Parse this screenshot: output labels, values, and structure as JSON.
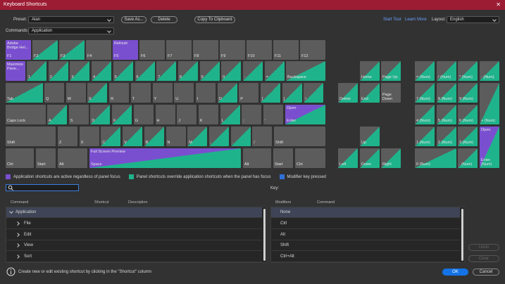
{
  "window": {
    "title": "Keyboard Shortcuts"
  },
  "toolbar": {
    "preset_label": "Preset:",
    "preset": "Alan",
    "save_as": "Save As...",
    "delete": "Delete",
    "copy": "Copy To Clipboard",
    "start_tour": "Start Tour",
    "learn_more": "Learn More",
    "layout_label": "Layout:",
    "layout": "English",
    "commands_label": "Commands:",
    "commands": "Application"
  },
  "keyboard": {
    "colors": {
      "plain": "#5c5c5c",
      "app": "#7a4fcf",
      "panel": "#1fb38b"
    },
    "keys": [
      {
        "label": "F1",
        "command": "Adobe Bridge Hel...",
        "style": "app"
      },
      {
        "label": "F2",
        "style": "half"
      },
      {
        "label": "F3",
        "style": "half"
      },
      {
        "label": "F4",
        "style": "plain"
      },
      {
        "label": "F5",
        "command": "Refresh",
        "style": "app"
      },
      {
        "label": "F6",
        "style": "plain"
      },
      {
        "label": "F7",
        "style": "plain"
      },
      {
        "label": "F8",
        "style": "plain"
      },
      {
        "label": "F9",
        "style": "plain"
      },
      {
        "label": "F10",
        "style": "plain"
      },
      {
        "label": "F11",
        "style": "plain"
      },
      {
        "label": "F12",
        "style": "plain"
      },
      {
        "command": "Maximize Pane...",
        "style": "app"
      },
      {
        "label": "1",
        "style": "half"
      },
      {
        "label": "2",
        "style": "half"
      },
      {
        "label": "3",
        "style": "half"
      },
      {
        "label": "4",
        "style": "half"
      },
      {
        "label": "5",
        "style": "half"
      },
      {
        "label": "6",
        "style": "half"
      },
      {
        "label": "7",
        "style": "half"
      },
      {
        "label": "8",
        "style": "half"
      },
      {
        "label": "9",
        "style": "half"
      },
      {
        "label": "0",
        "style": "half"
      },
      {
        "label": "-",
        "style": "half"
      },
      {
        "label": "=",
        "style": "half"
      },
      {
        "label": "Backspace",
        "style": "half"
      },
      {
        "label": "Tab",
        "style": "half"
      },
      {
        "label": "Q",
        "style": "plain"
      },
      {
        "label": "W",
        "style": "plain"
      },
      {
        "label": "E",
        "style": "half"
      },
      {
        "label": "R",
        "style": "plain"
      },
      {
        "label": "T",
        "style": "plain"
      },
      {
        "label": "Y",
        "style": "plain"
      },
      {
        "label": "U",
        "style": "plain"
      },
      {
        "label": "I",
        "style": "plain"
      },
      {
        "label": "O",
        "style": "half"
      },
      {
        "label": "P",
        "style": "plain"
      },
      {
        "label": "[",
        "style": "half"
      },
      {
        "label": "]",
        "style": "half"
      },
      {
        "label": "\\",
        "style": "half"
      },
      {
        "label": "Caps Lock",
        "style": "plain"
      },
      {
        "label": "A",
        "style": "half"
      },
      {
        "label": "S",
        "style": "plain"
      },
      {
        "label": "D",
        "style": "half"
      },
      {
        "label": "F",
        "style": "half"
      },
      {
        "label": "G",
        "style": "plain"
      },
      {
        "label": "H",
        "style": "plain"
      },
      {
        "label": "J",
        "style": "plain"
      },
      {
        "label": "K",
        "style": "plain"
      },
      {
        "label": "L",
        "style": "half"
      },
      {
        "label": ";",
        "style": "plain"
      },
      {
        "label": "'",
        "style": "plain"
      },
      {
        "label": "Enter",
        "command": "Open",
        "style": "app-half"
      },
      {
        "label": "Shift",
        "style": "plain"
      },
      {
        "label": "Z",
        "style": "plain"
      },
      {
        "label": "X",
        "style": "plain"
      },
      {
        "label": "C",
        "style": "half"
      },
      {
        "label": "V",
        "style": "half"
      },
      {
        "label": "B",
        "style": "half"
      },
      {
        "label": "N",
        "style": "plain"
      },
      {
        "label": "M",
        "style": "half"
      },
      {
        "label": ",",
        "style": "half"
      },
      {
        "label": ".",
        "style": "half"
      },
      {
        "label": "/",
        "style": "plain"
      },
      {
        "label": "Shift",
        "style": "plain"
      },
      {
        "label": "Ctrl",
        "style": "plain"
      },
      {
        "label": "Start",
        "style": "plain"
      },
      {
        "label": "Alt",
        "style": "plain"
      },
      {
        "label": "Space",
        "command": "Full Screen Preview",
        "style": "app-half"
      },
      {
        "label": "Alt",
        "style": "plain"
      },
      {
        "label": "Start",
        "style": "plain"
      },
      {
        "label": "Ctrl",
        "style": "plain"
      },
      {
        "label": "Home",
        "style": "half"
      },
      {
        "label": "Page Up",
        "style": "half"
      },
      {
        "label": "Delete",
        "style": "half"
      },
      {
        "label": "End",
        "style": "half"
      },
      {
        "label": "Page Down",
        "style": "plain"
      },
      {
        "label": "Up",
        "style": "half"
      },
      {
        "label": "Left",
        "style": "half"
      },
      {
        "label": "Down",
        "style": "half"
      },
      {
        "label": "Right",
        "style": "half"
      },
      {
        "label": "= (Num)",
        "style": "half"
      },
      {
        "label": "/ (Num)",
        "style": "half"
      },
      {
        "label": "* (Num)",
        "style": "half"
      },
      {
        "label": "- (Num)",
        "style": "half"
      },
      {
        "label": "7 (Num)",
        "style": "half"
      },
      {
        "label": "8 (Num)",
        "style": "half"
      },
      {
        "label": "9 (Num)",
        "style": "half"
      },
      {
        "label": "+ (Num)",
        "style": "half"
      },
      {
        "label": "4 (Num)",
        "style": "half"
      },
      {
        "label": "5 (Num)",
        "style": "half"
      },
      {
        "label": "6 (Num)",
        "style": "half"
      },
      {
        "label": "1 (Num)",
        "style": "half"
      },
      {
        "label": "2 (Num)",
        "style": "half"
      },
      {
        "label": "3 (Num)",
        "style": "half"
      },
      {
        "label": "Enter (Num)",
        "command": "Open",
        "style": "app-half"
      },
      {
        "label": "0 (Num)",
        "style": "half"
      },
      {
        "label": ". (Num)",
        "style": "half"
      }
    ]
  },
  "legend": {
    "items": [
      {
        "text": "Application shortcuts are active regardless of panel focus",
        "color": "#7a4fcf"
      },
      {
        "text": "Panel shortcuts override application shortcuts when the panel has focus",
        "color": "#1fb38b"
      },
      {
        "text": "Modifier key pressed",
        "color": "#2f6fd8"
      }
    ]
  },
  "search": {
    "key_label": "Key:"
  },
  "commands_table": {
    "headers": [
      "Command",
      "Shortcut",
      "Description"
    ],
    "rows": [
      "Application",
      "File",
      "Edit",
      "View",
      "Sort"
    ]
  },
  "modifiers_table": {
    "headers": [
      "Modifiers",
      "Command"
    ],
    "rows": [
      "None",
      "Ctrl",
      "Alt",
      "Shift",
      "Ctrl+Alt"
    ]
  },
  "buttons": {
    "undo": "Undo",
    "clear": "Clear",
    "ok": "OK",
    "cancel": "Cancel"
  },
  "status": "Create new or edit existing shortcut by clicking in the \"Shortcut\" column"
}
